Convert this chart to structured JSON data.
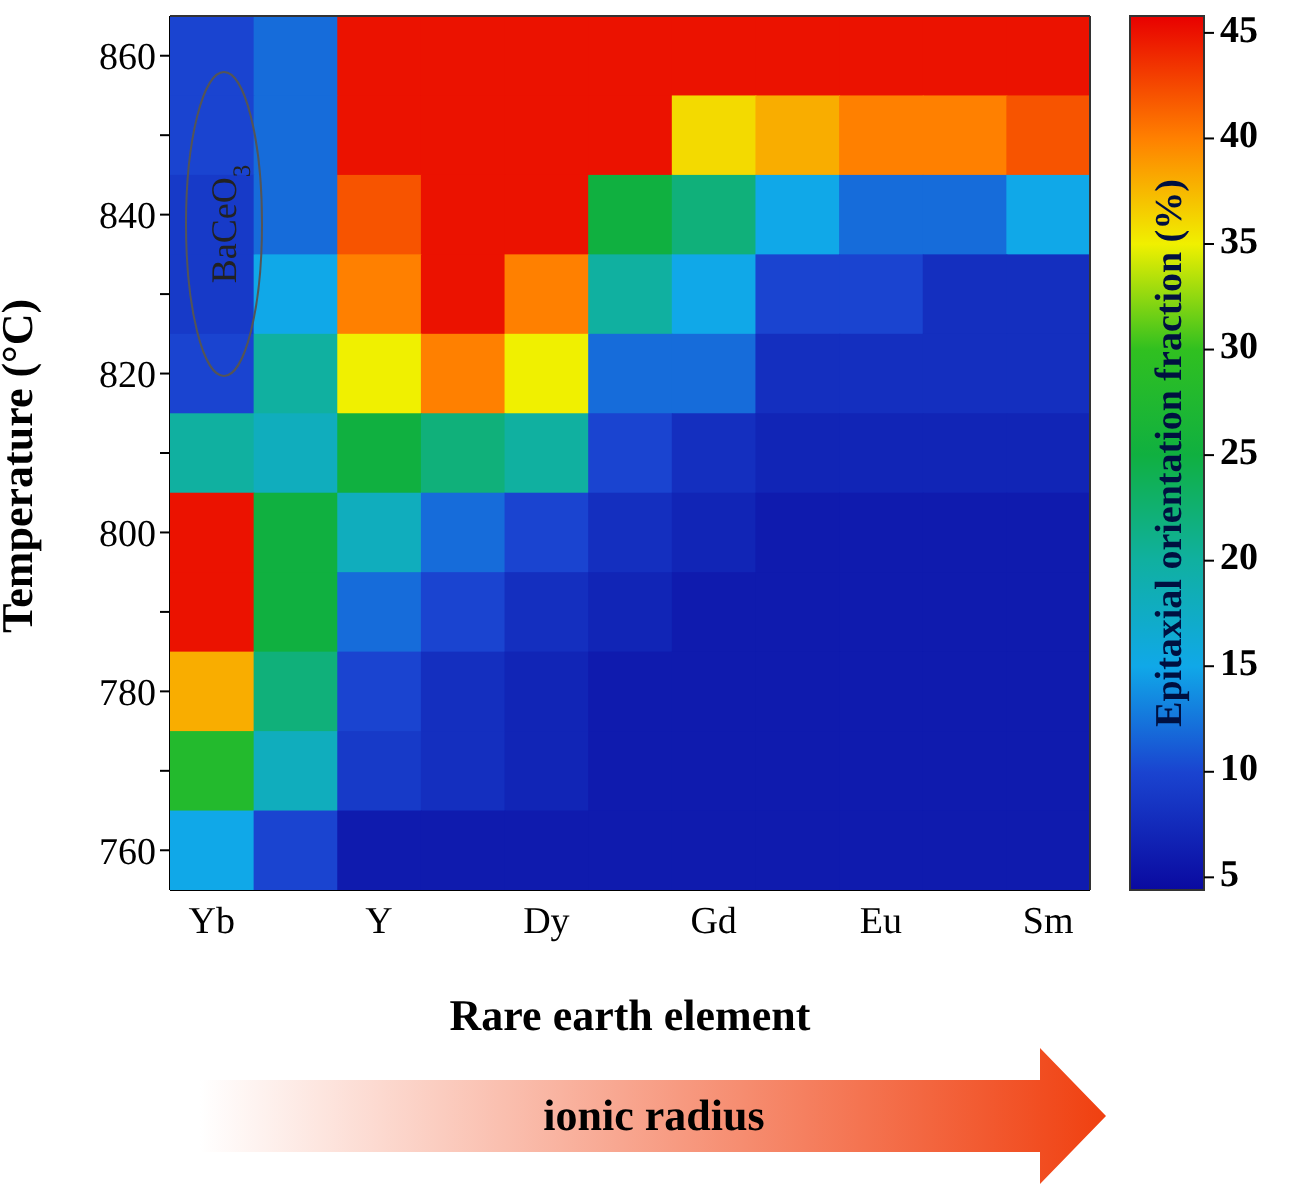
{
  "chart_data": {
    "type": "heatmap",
    "xlabel": "Rare earth element",
    "ylabel": "Temperature (°C)",
    "clabel": "Epitaxial orientation fraction (%)",
    "categories": [
      "Yb",
      null,
      "Y",
      null,
      "Dy",
      null,
      "Gd",
      null,
      "Eu",
      null,
      "Sm"
    ],
    "y_categories": [
      "860",
      null,
      "840",
      null,
      "820",
      null,
      "800",
      null,
      "780",
      null,
      "760"
    ],
    "cells": [
      [
        10,
        12,
        45,
        45,
        45,
        45,
        45,
        45,
        45,
        45,
        45
      ],
      [
        10,
        12,
        45,
        45,
        45,
        45,
        36,
        38,
        40,
        40,
        42
      ],
      [
        9,
        12,
        42,
        45,
        45,
        25,
        22,
        15,
        12,
        12,
        15
      ],
      [
        9,
        15,
        40,
        45,
        40,
        20,
        15,
        10,
        10,
        8,
        8
      ],
      [
        10,
        20,
        35,
        40,
        35,
        12,
        12,
        8,
        8,
        8,
        8
      ],
      [
        20,
        18,
        25,
        22,
        20,
        10,
        8,
        7,
        7,
        7,
        7
      ],
      [
        45,
        25,
        18,
        12,
        10,
        8,
        7,
        6,
        6,
        6,
        6
      ],
      [
        45,
        25,
        12,
        10,
        8,
        7,
        6,
        6,
        6,
        6,
        6
      ],
      [
        38,
        22,
        10,
        8,
        7,
        6,
        6,
        6,
        6,
        6,
        6
      ],
      [
        28,
        18,
        9,
        8,
        7,
        6,
        6,
        6,
        6,
        6,
        6
      ],
      [
        15,
        10,
        6,
        6,
        6,
        6,
        6,
        6,
        6,
        6,
        6
      ]
    ],
    "clim": [
      4.4,
      45.8
    ],
    "cticks": [
      5,
      10,
      15,
      20,
      25,
      30,
      35,
      40,
      45
    ],
    "annotations": [
      "BaCeO$_{3}$",
      "ionic radius"
    ]
  }
}
